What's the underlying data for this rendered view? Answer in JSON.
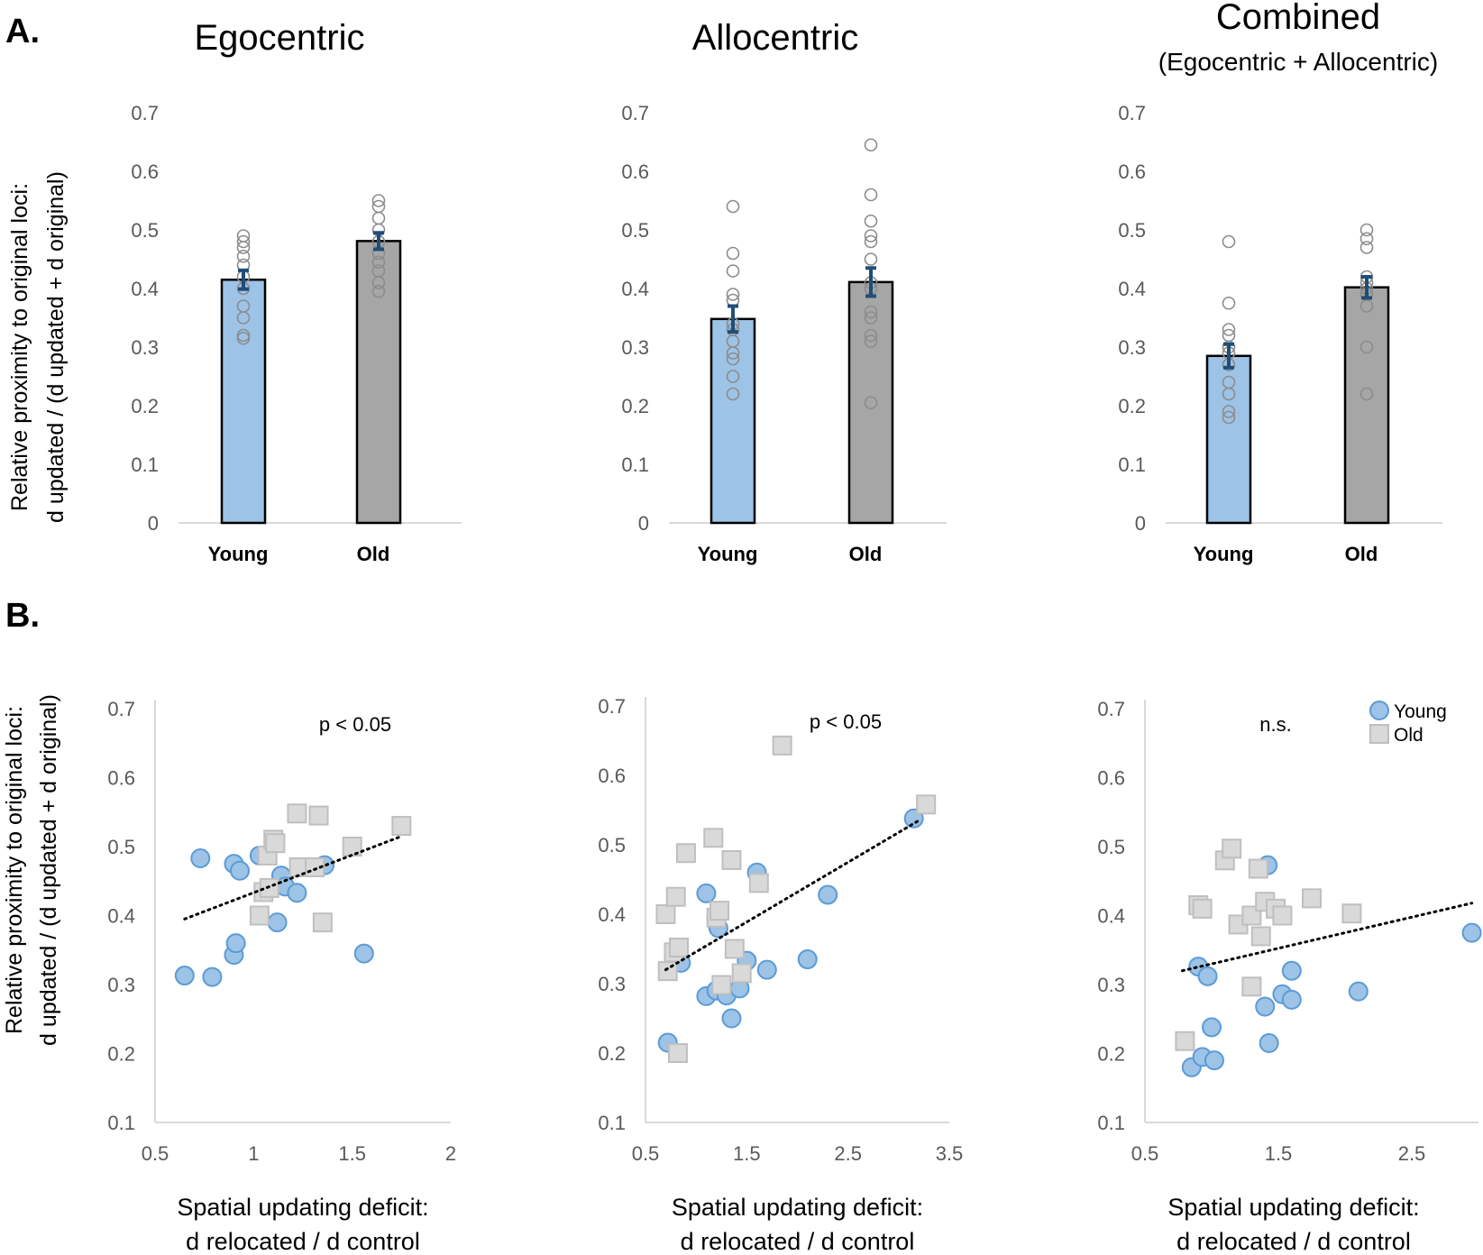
{
  "panels": {
    "a": "A.",
    "b": "B."
  },
  "y_axis_label": {
    "line1": "Relative proximity to original loci:",
    "line2": "d updated / (d updated + d original)"
  },
  "colors": {
    "young": "#9dc3e6",
    "old": "#a6a6a6",
    "young_edge": "#5b9bd5",
    "old_edge": "#bfbfbf",
    "error": "#1f4e79",
    "axis": "#d9d9d9"
  },
  "chart_data": [
    {
      "type": "bar",
      "id": "bar-egocentric",
      "title": "Egocentric",
      "subtitle": "",
      "categories": [
        "Young",
        "Old"
      ],
      "values": [
        0.415,
        0.481
      ],
      "errors": [
        0.016,
        0.014
      ],
      "points": [
        [
          0.315,
          0.32,
          0.35,
          0.37,
          0.4,
          0.42,
          0.44,
          0.455,
          0.47,
          0.48,
          0.49
        ],
        [
          0.395,
          0.41,
          0.43,
          0.445,
          0.46,
          0.48,
          0.5,
          0.52,
          0.54,
          0.55
        ]
      ],
      "ylim": [
        0,
        0.7
      ],
      "yticks": [
        "0",
        "0.1",
        "0.2",
        "0.3",
        "0.4",
        "0.5",
        "0.6",
        "0.7"
      ]
    },
    {
      "type": "bar",
      "id": "bar-allocentric",
      "title": "Allocentric",
      "subtitle": "",
      "categories": [
        "Young",
        "Old"
      ],
      "values": [
        0.348,
        0.411
      ],
      "errors": [
        0.022,
        0.024
      ],
      "points": [
        [
          0.22,
          0.25,
          0.28,
          0.29,
          0.31,
          0.33,
          0.34,
          0.38,
          0.39,
          0.43,
          0.46,
          0.54
        ],
        [
          0.205,
          0.31,
          0.32,
          0.35,
          0.36,
          0.4,
          0.41,
          0.45,
          0.48,
          0.49,
          0.515,
          0.56,
          0.645
        ]
      ],
      "ylim": [
        0,
        0.7
      ],
      "yticks": [
        "0",
        "0.1",
        "0.2",
        "0.3",
        "0.4",
        "0.5",
        "0.6",
        "0.7"
      ]
    },
    {
      "type": "bar",
      "id": "bar-combined",
      "title": "Combined",
      "subtitle": "(Egocentric + Allocentric)",
      "categories": [
        "Young",
        "Old"
      ],
      "values": [
        0.285,
        0.402
      ],
      "errors": [
        0.02,
        0.018
      ],
      "points": [
        [
          0.18,
          0.19,
          0.22,
          0.24,
          0.27,
          0.29,
          0.3,
          0.32,
          0.33,
          0.375,
          0.48
        ],
        [
          0.22,
          0.3,
          0.37,
          0.39,
          0.4,
          0.41,
          0.42,
          0.47,
          0.485,
          0.5
        ]
      ],
      "ylim": [
        0,
        0.7
      ],
      "yticks": [
        "0",
        "0.1",
        "0.2",
        "0.3",
        "0.4",
        "0.5",
        "0.6",
        "0.7"
      ]
    },
    {
      "type": "scatter",
      "id": "scatter-egocentric",
      "annotation": "p < 0.05",
      "xlabel_line1": "Spatial updating deficit:",
      "xlabel_line2": "d relocated / d control",
      "xlim": [
        0.5,
        2
      ],
      "ylim": [
        0.1,
        0.7
      ],
      "xticks": [
        "0.5",
        "1",
        "1.5",
        "2"
      ],
      "yticks": [
        "0.1",
        "0.2",
        "0.3",
        "0.4",
        "0.5",
        "0.6",
        "0.7"
      ],
      "trend": {
        "x": [
          0.65,
          1.75
        ],
        "y": [
          0.395,
          0.515
        ]
      },
      "series": [
        {
          "name": "Young",
          "points": [
            [
              0.65,
              0.313
            ],
            [
              0.79,
              0.311
            ],
            [
              0.73,
              0.483
            ],
            [
              0.9,
              0.475
            ],
            [
              0.93,
              0.465
            ],
            [
              0.9,
              0.343
            ],
            [
              0.91,
              0.36
            ],
            [
              1.03,
              0.487
            ],
            [
              1.12,
              0.39
            ],
            [
              1.14,
              0.458
            ],
            [
              1.16,
              0.442
            ],
            [
              1.22,
              0.433
            ],
            [
              1.36,
              0.473
            ],
            [
              1.56,
              0.345
            ]
          ]
        },
        {
          "name": "Old",
          "points": [
            [
              1.03,
              0.4
            ],
            [
              1.05,
              0.434
            ],
            [
              1.08,
              0.44
            ],
            [
              1.07,
              0.487
            ],
            [
              1.1,
              0.51
            ],
            [
              1.11,
              0.505
            ],
            [
              1.22,
              0.548
            ],
            [
              1.33,
              0.545
            ],
            [
              1.23,
              0.47
            ],
            [
              1.31,
              0.47
            ],
            [
              1.35,
              0.39
            ],
            [
              1.5,
              0.5
            ],
            [
              1.75,
              0.53
            ]
          ]
        }
      ]
    },
    {
      "type": "scatter",
      "id": "scatter-allocentric",
      "annotation": "p < 0.05",
      "xlabel_line1": "Spatial updating deficit:",
      "xlabel_line2": "d relocated / d control",
      "xlim": [
        0.5,
        3.5
      ],
      "ylim": [
        0.1,
        0.7
      ],
      "xticks": [
        "0.5",
        "1.5",
        "2.5",
        "3.5"
      ],
      "yticks": [
        "0.1",
        "0.2",
        "0.3",
        "0.4",
        "0.5",
        "0.6",
        "0.7"
      ],
      "trend": {
        "x": [
          0.7,
          3.2
        ],
        "y": [
          0.32,
          0.535
        ]
      },
      "series": [
        {
          "name": "Young",
          "points": [
            [
              0.72,
              0.215
            ],
            [
              0.85,
              0.33
            ],
            [
              1.1,
              0.43
            ],
            [
              1.1,
              0.282
            ],
            [
              1.2,
              0.395
            ],
            [
              1.22,
              0.38
            ],
            [
              1.2,
              0.29
            ],
            [
              1.3,
              0.283
            ],
            [
              1.35,
              0.25
            ],
            [
              1.43,
              0.293
            ],
            [
              1.5,
              0.333
            ],
            [
              1.6,
              0.46
            ],
            [
              1.7,
              0.32
            ],
            [
              2.1,
              0.335
            ],
            [
              2.3,
              0.428
            ],
            [
              3.15,
              0.538
            ]
          ]
        },
        {
          "name": "Old",
          "points": [
            [
              0.7,
              0.4
            ],
            [
              0.72,
              0.318
            ],
            [
              0.78,
              0.345
            ],
            [
              0.8,
              0.425
            ],
            [
              0.82,
              0.2
            ],
            [
              0.83,
              0.352
            ],
            [
              0.9,
              0.488
            ],
            [
              1.17,
              0.51
            ],
            [
              1.2,
              0.395
            ],
            [
              1.23,
              0.405
            ],
            [
              1.25,
              0.298
            ],
            [
              1.35,
              0.478
            ],
            [
              1.38,
              0.35
            ],
            [
              1.45,
              0.315
            ],
            [
              1.62,
              0.445
            ],
            [
              1.85,
              0.643
            ],
            [
              3.27,
              0.558
            ]
          ]
        }
      ]
    },
    {
      "type": "scatter",
      "id": "scatter-combined",
      "annotation": "n.s.",
      "xlabel_line1": "Spatial updating deficit:",
      "xlabel_line2": "d relocated / d control",
      "xlim": [
        0.5,
        3
      ],
      "ylim": [
        0.1,
        0.7
      ],
      "xticks": [
        "0.5",
        "1.5",
        "2.5"
      ],
      "yticks": [
        "0.1",
        "0.2",
        "0.3",
        "0.4",
        "0.5",
        "0.6",
        "0.7"
      ],
      "legend": [
        "Young",
        "Old"
      ],
      "trend": {
        "x": [
          0.78,
          2.95
        ],
        "y": [
          0.32,
          0.418
        ]
      },
      "series": [
        {
          "name": "Young",
          "points": [
            [
              0.85,
              0.18
            ],
            [
              0.9,
              0.326
            ],
            [
              0.93,
              0.195
            ],
            [
              0.97,
              0.312
            ],
            [
              1.0,
              0.238
            ],
            [
              1.02,
              0.19
            ],
            [
              1.42,
              0.473
            ],
            [
              1.4,
              0.268
            ],
            [
              1.43,
              0.215
            ],
            [
              1.53,
              0.286
            ],
            [
              1.6,
              0.32
            ],
            [
              1.6,
              0.278
            ],
            [
              2.1,
              0.29
            ],
            [
              2.95,
              0.375
            ]
          ]
        },
        {
          "name": "Old",
          "points": [
            [
              0.8,
              0.218
            ],
            [
              0.9,
              0.415
            ],
            [
              0.93,
              0.41
            ],
            [
              1.1,
              0.48
            ],
            [
              1.15,
              0.497
            ],
            [
              1.2,
              0.387
            ],
            [
              1.3,
              0.4
            ],
            [
              1.3,
              0.297
            ],
            [
              1.35,
              0.468
            ],
            [
              1.37,
              0.37
            ],
            [
              1.4,
              0.42
            ],
            [
              1.48,
              0.41
            ],
            [
              1.53,
              0.4
            ],
            [
              1.75,
              0.425
            ],
            [
              2.05,
              0.403
            ]
          ]
        }
      ]
    }
  ]
}
